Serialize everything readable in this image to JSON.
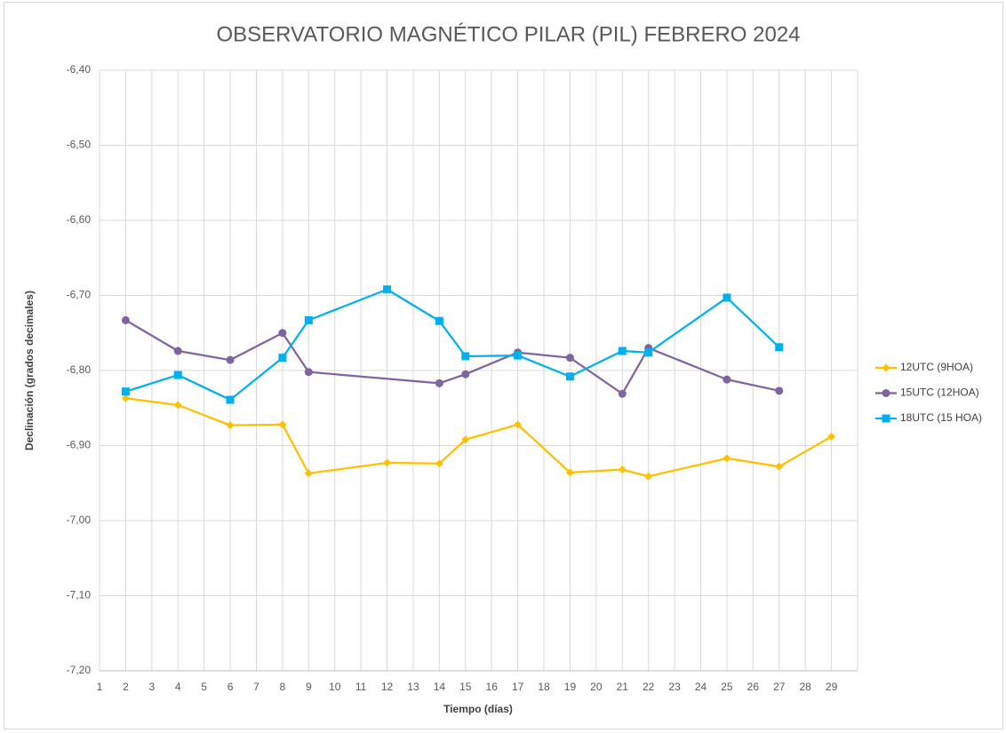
{
  "chart_data": {
    "type": "line",
    "title": "OBSERVATORIO MAGNÉTICO PILAR (PIL) FEBRERO 2024",
    "x_label": "Tiempo (días)",
    "y_label": "Declinación (grados decimales)",
    "xlim": [
      1,
      30
    ],
    "xticks": [
      1,
      2,
      3,
      4,
      5,
      6,
      7,
      8,
      9,
      10,
      11,
      12,
      13,
      14,
      15,
      16,
      17,
      18,
      19,
      20,
      21,
      22,
      23,
      24,
      25,
      26,
      27,
      28,
      29
    ],
    "ylim": [
      -7.2,
      -6.4
    ],
    "yticks": [
      {
        "value": -7.2,
        "label": "-7,20"
      },
      {
        "value": -7.1,
        "label": "-7,10"
      },
      {
        "value": -7.0,
        "label": "-7,00"
      },
      {
        "value": -6.9,
        "label": "-6,90"
      },
      {
        "value": -6.8,
        "label": "-6,80"
      },
      {
        "value": -6.7,
        "label": "-6,70"
      },
      {
        "value": -6.6,
        "label": "-6,60"
      },
      {
        "value": -6.5,
        "label": "-6,50"
      },
      {
        "value": -6.4,
        "label": "-6,40"
      }
    ],
    "grid": true,
    "legend": "right",
    "series": [
      {
        "name": "12UTC (9HOA)",
        "color": "#FFC000",
        "marker": "diamond",
        "x": [
          2,
          4,
          6,
          8,
          9,
          12,
          14,
          15,
          17,
          19,
          21,
          22,
          25,
          27,
          29
        ],
        "values": [
          -6.837,
          -6.846,
          -6.873,
          -6.872,
          -6.937,
          -6.923,
          -6.924,
          -6.892,
          -6.872,
          -6.936,
          -6.932,
          -6.941,
          -6.917,
          -6.928,
          -6.888
        ]
      },
      {
        "name": "15UTC (12HOA)",
        "color": "#8064A2",
        "marker": "circle",
        "x": [
          2,
          4,
          6,
          8,
          9,
          14,
          15,
          17,
          19,
          21,
          22,
          25,
          27
        ],
        "values": [
          -6.733,
          -6.774,
          -6.786,
          -6.75,
          -6.802,
          -6.817,
          -6.805,
          -6.776,
          -6.783,
          -6.831,
          -6.77,
          -6.812,
          -6.827
        ]
      },
      {
        "name": "18UTC (15 HOA)",
        "color": "#00B0F0",
        "marker": "square",
        "x": [
          2,
          4,
          6,
          8,
          9,
          12,
          14,
          15,
          17,
          19,
          21,
          22,
          25,
          27
        ],
        "values": [
          -6.828,
          -6.806,
          -6.839,
          -6.783,
          -6.733,
          -6.692,
          -6.734,
          -6.781,
          -6.78,
          -6.808,
          -6.774,
          -6.776,
          -6.703,
          -6.769
        ]
      }
    ]
  }
}
